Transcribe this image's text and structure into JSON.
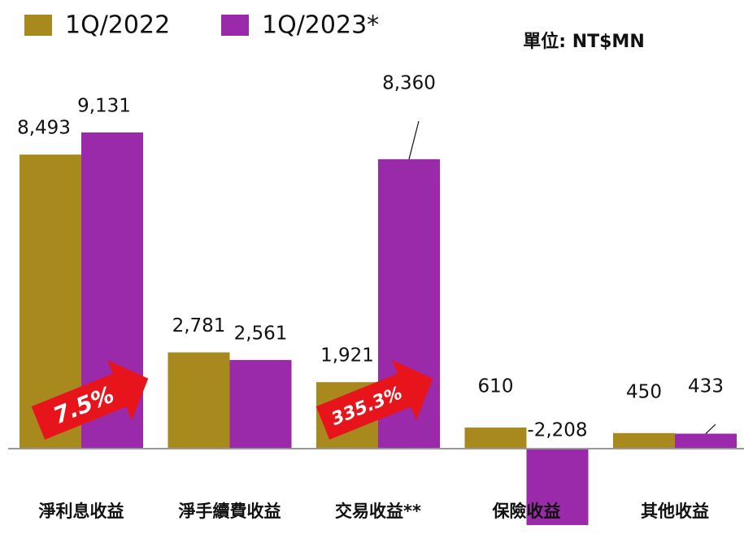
{
  "chart_data": {
    "type": "bar",
    "unit_label": "單位: NT$MN",
    "categories": [
      "淨利息收益",
      "淨手續費收益",
      "交易收益**",
      "保險收益",
      "其他收益"
    ],
    "series": [
      {
        "name": "1Q/2022",
        "color": "#a8891e",
        "values": [
          8493,
          2781,
          1921,
          610,
          450
        ],
        "value_labels": [
          "8,493",
          "2,781",
          "1,921",
          "610",
          "450"
        ]
      },
      {
        "name": "1Q/2023*",
        "color": "#9b2aab",
        "values": [
          9131,
          2561,
          8360,
          -2208,
          433
        ],
        "value_labels": [
          "9,131",
          "2,561",
          "8,360",
          "-2,208",
          "433"
        ]
      }
    ],
    "annotations": [
      "7.5%",
      "335.3%"
    ]
  }
}
